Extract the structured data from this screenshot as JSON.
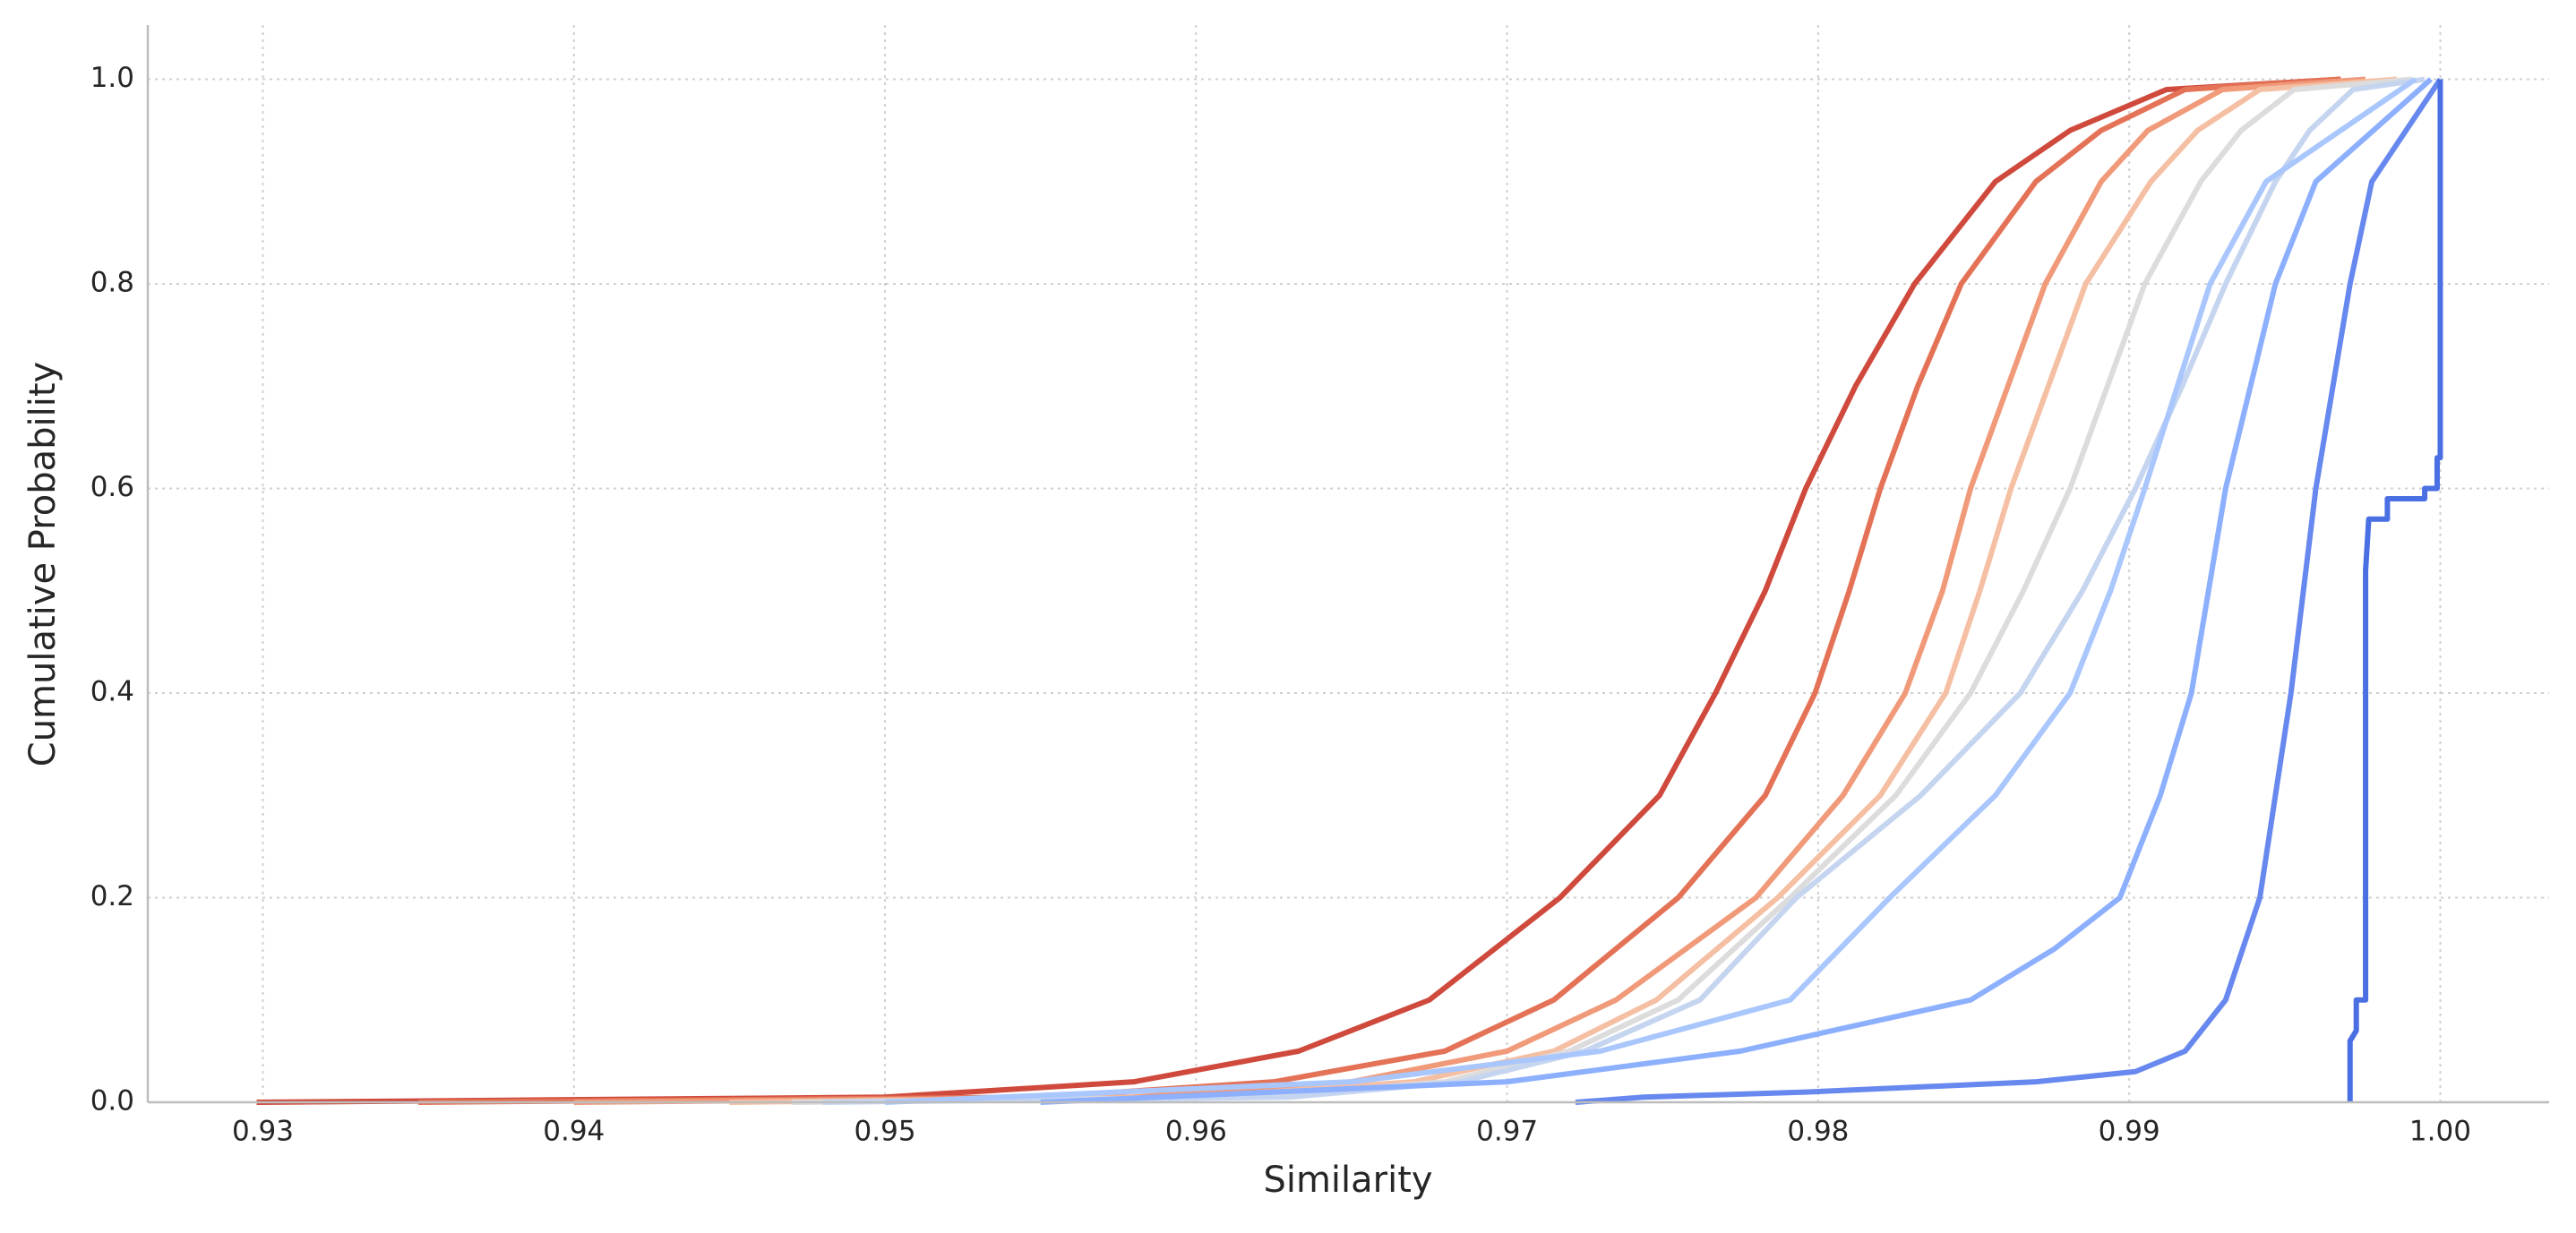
{
  "chart_data": {
    "type": "line",
    "x_label": "Similarity",
    "y_label": "Cumulative Probability",
    "xlim": [
      0.9263,
      1.0035
    ],
    "ylim": [
      0,
      1.053
    ],
    "xticks": [
      0.93,
      0.94,
      0.95,
      0.96,
      0.97,
      0.98,
      0.99,
      {
        "value": 1.0,
        "label": "1.00"
      }
    ],
    "yticks": [
      {
        "value": 0,
        "label": "0.0"
      },
      0.2,
      0.4,
      0.6,
      0.8,
      {
        "value": 1,
        "label": "1.0"
      }
    ],
    "grid": true,
    "series": [
      {
        "color": "#cf4a3c",
        "x": [
          0.9298,
          0.95,
          0.958,
          0.9633,
          0.9675,
          0.9717,
          0.9749,
          0.9767,
          0.9783,
          0.9796,
          0.9812,
          0.9831,
          0.9857,
          0.9881,
          0.9912,
          0.9968
        ],
        "values": [
          0,
          0.005,
          0.02,
          0.05,
          0.1,
          0.2,
          0.3,
          0.4,
          0.5,
          0.6,
          0.7,
          0.8,
          0.9,
          0.95,
          0.99,
          1
        ]
      },
      {
        "color": "#e47256",
        "x": [
          0.935,
          0.955,
          0.9625,
          0.968,
          0.9715,
          0.9755,
          0.9783,
          0.9799,
          0.981,
          0.982,
          0.9832,
          0.9846,
          0.987,
          0.9891,
          0.9918,
          0.9968
        ],
        "values": [
          0,
          0.005,
          0.02,
          0.05,
          0.1,
          0.2,
          0.3,
          0.4,
          0.5,
          0.6,
          0.7,
          0.8,
          0.9,
          0.95,
          0.99,
          1
        ]
      },
      {
        "color": "#f09a7a",
        "x": [
          0.94,
          0.958,
          0.965,
          0.97,
          0.9735,
          0.978,
          0.9808,
          0.9828,
          0.984,
          0.9849,
          0.9861,
          0.9873,
          0.9891,
          0.9906,
          0.993,
          0.9976
        ],
        "values": [
          0,
          0.005,
          0.02,
          0.05,
          0.1,
          0.2,
          0.3,
          0.4,
          0.5,
          0.6,
          0.7,
          0.8,
          0.9,
          0.95,
          0.99,
          1
        ]
      },
      {
        "color": "#f5bfa3",
        "x": [
          0.945,
          0.96,
          0.967,
          0.9715,
          0.9748,
          0.9787,
          0.982,
          0.9841,
          0.9852,
          0.9862,
          0.9874,
          0.9886,
          0.9907,
          0.9922,
          0.9942,
          0.9986
        ],
        "values": [
          0,
          0.005,
          0.02,
          0.05,
          0.1,
          0.2,
          0.3,
          0.4,
          0.5,
          0.6,
          0.7,
          0.8,
          0.9,
          0.95,
          0.99,
          1
        ]
      },
      {
        "color": "#dcdcdc",
        "x": [
          0.947,
          0.962,
          0.968,
          0.972,
          0.9755,
          0.9791,
          0.9825,
          0.9849,
          0.9866,
          0.9881,
          0.9893,
          0.9905,
          0.9923,
          0.9936,
          0.9953,
          0.9991
        ],
        "values": [
          0,
          0.005,
          0.02,
          0.05,
          0.1,
          0.2,
          0.3,
          0.4,
          0.5,
          0.6,
          0.7,
          0.8,
          0.9,
          0.95,
          0.99,
          1
        ]
      },
      {
        "color": "#c5d5f0",
        "x": [
          0.948,
          0.963,
          0.9685,
          0.9725,
          0.9762,
          0.9793,
          0.9833,
          0.9865,
          0.9885,
          0.9902,
          0.9917,
          0.9931,
          0.9947,
          0.9958,
          0.9972,
          0.9995
        ],
        "values": [
          0,
          0.005,
          0.02,
          0.05,
          0.1,
          0.2,
          0.3,
          0.4,
          0.5,
          0.6,
          0.7,
          0.8,
          0.9,
          0.95,
          0.99,
          1
        ]
      },
      {
        "color": "#a9c6fd",
        "x": [
          0.95,
          0.965,
          0.973,
          0.9791,
          0.9823,
          0.9857,
          0.9881,
          0.9894,
          0.9905,
          0.9926,
          0.9944,
          0.9992
        ],
        "values": [
          0,
          0.02,
          0.05,
          0.1,
          0.2,
          0.3,
          0.4,
          0.5,
          0.6,
          0.8,
          0.9,
          1
        ]
      },
      {
        "color": "#8caffe",
        "x": [
          0.955,
          0.97,
          0.9775,
          0.9849,
          0.9876,
          0.9897,
          0.991,
          0.992,
          0.9931,
          0.9947,
          0.996,
          0.9997
        ],
        "values": [
          0,
          0.02,
          0.05,
          0.1,
          0.15,
          0.2,
          0.3,
          0.4,
          0.6,
          0.8,
          0.9,
          1
        ]
      },
      {
        "color": "#6788ee",
        "x": [
          0.9722,
          0.9744,
          0.9796,
          0.987,
          0.9902,
          0.9918,
          0.9931,
          0.9942,
          0.9952,
          0.996,
          0.9971,
          0.9978,
          1.0
        ],
        "values": [
          0,
          0.005,
          0.01,
          0.02,
          0.03,
          0.05,
          0.1,
          0.2,
          0.4,
          0.6,
          0.8,
          0.9,
          1
        ]
      },
      {
        "color": "#4a6fe3",
        "x": [
          0.9971,
          0.9971,
          0.9973,
          0.9973,
          0.9976,
          0.9976,
          0.9977,
          0.9983,
          0.9983,
          0.9995,
          0.9995,
          0.9999,
          0.9999,
          1.0,
          1.0
        ],
        "values": [
          0,
          0.06,
          0.07,
          0.1,
          0.1,
          0.52,
          0.57,
          0.57,
          0.59,
          0.59,
          0.6,
          0.6,
          0.63,
          0.63,
          1
        ]
      }
    ]
  }
}
